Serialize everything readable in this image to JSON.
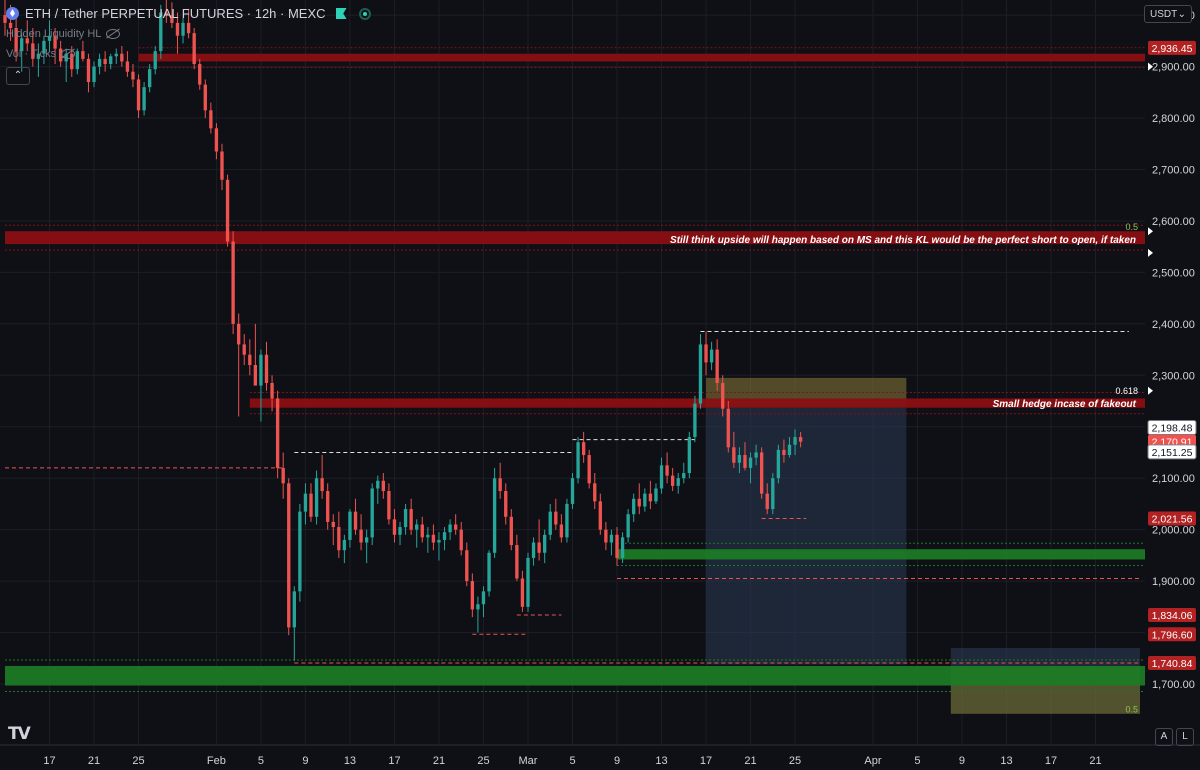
{
  "header": {
    "title": "ETH / Tether PERPETUAL FUTURES · 12h · MEXC",
    "indicator1": "Hidden Liquidity HL",
    "indicator2": "Vol · Ticks",
    "currency": "USDT"
  },
  "axis_buttons": {
    "a": "A",
    "l": "L"
  },
  "colors": {
    "up": "#26a69a",
    "down": "#ef5350",
    "red_zone": "#8b0f12",
    "green_zone": "#1b7a24",
    "background": "#0f1016",
    "grid": "#1c1e26"
  },
  "chart_data": {
    "type": "candlestick",
    "symbol": "ETH / Tether PERPETUAL FUTURES",
    "timeframe": "12h",
    "exchange": "MEXC",
    "ylim": [
      1630,
      3010
    ],
    "y_ticks": [
      "3,000.00",
      "2,900.00",
      "2,800.00",
      "2,700.00",
      "2,600.00",
      "2,500.00",
      "2,400.00",
      "2,300.00",
      "2,200.00",
      "2,100.00",
      "2,000.00",
      "1,900.00",
      "1,800.00",
      "1,700.00"
    ],
    "x_ticks": [
      "17",
      "21",
      "25",
      "Feb",
      "5",
      "9",
      "13",
      "17",
      "21",
      "25",
      "Mar",
      "5",
      "9",
      "13",
      "17",
      "21",
      "25",
      "Apr",
      "5",
      "9",
      "13",
      "17",
      "21"
    ],
    "x_tick_dates": [
      "2025-01-17",
      "2025-01-21",
      "2025-01-25",
      "2025-02-01",
      "2025-02-05",
      "2025-02-09",
      "2025-02-13",
      "2025-02-17",
      "2025-02-21",
      "2025-02-25",
      "2025-03-01",
      "2025-03-05",
      "2025-03-09",
      "2025-03-13",
      "2025-03-17",
      "2025-03-21",
      "2025-03-25",
      "2025-04-01",
      "2025-04-05",
      "2025-04-09",
      "2025-04-13",
      "2025-04-17",
      "2025-04-21"
    ],
    "x_range": [
      "2025-01-13",
      "2025-04-25"
    ],
    "price_labels": [
      {
        "text": "2,936.45",
        "value": 2936.45,
        "color": "#b22222"
      },
      {
        "text": "2,198.48",
        "value": 2198.48,
        "color": "#ffffff"
      },
      {
        "text": "2,170.91",
        "value": 2170.91,
        "color": "#ef5350"
      },
      {
        "text": "2,151.25",
        "value": 2151.25,
        "color": "#ffffff"
      },
      {
        "text": "2,021.56",
        "value": 2021.56,
        "color": "#b22222"
      },
      {
        "text": "1,834.06",
        "value": 1834.06,
        "color": "#b22222"
      },
      {
        "text": "1,796.60",
        "value": 1796.6,
        "color": "#b22222"
      },
      {
        "text": "1,740.84",
        "value": 1740.84,
        "color": "#b22222"
      }
    ],
    "zones": [
      {
        "type": "red",
        "from": 2910,
        "to": 2925,
        "start": "2025-01-25",
        "end": "2025-04-25"
      },
      {
        "type": "red",
        "from": 2555,
        "to": 2580,
        "start": "2025-01-13",
        "end": "2025-04-25"
      },
      {
        "type": "red",
        "from": 2237,
        "to": 2255,
        "start": "2025-02-04",
        "end": "2025-04-25"
      },
      {
        "type": "green",
        "from": 1942,
        "to": 1962,
        "start": "2025-03-09",
        "end": "2025-04-25"
      },
      {
        "type": "green",
        "from": 1697,
        "to": 1735,
        "start": "2025-01-13",
        "end": "2025-04-25"
      }
    ],
    "annotations": [
      {
        "text": "Still think upside will happen based on MS and this KL would be the perfect short to open, if taken",
        "price": 2563
      },
      {
        "text": "Small hedge incase of fakeout",
        "price": 2244
      },
      {
        "text": "0.5",
        "price": 2588
      },
      {
        "text": "0.618",
        "price": 2269
      },
      {
        "text": "0.5",
        "price": 1650
      }
    ],
    "position_boxes": [
      {
        "name": "hedge-short",
        "entry": 2240,
        "stop": 2295,
        "target": 1738,
        "start": "2025-03-17",
        "end": "2025-04-04"
      },
      {
        "name": "long-zone",
        "entry": 1733,
        "stop": 1770,
        "target": 1642,
        "start": "2025-04-08",
        "end": "2025-04-25"
      }
    ],
    "candles": [
      [
        "2025-01-13",
        3000,
        3035,
        2960,
        2985
      ],
      [
        "2025-01-13.5",
        2985,
        3020,
        2950,
        2975
      ],
      [
        "2025-01-14",
        2975,
        3000,
        2910,
        2930
      ],
      [
        "2025-01-14.5",
        2930,
        2965,
        2890,
        2955
      ],
      [
        "2025-01-15",
        2955,
        2990,
        2930,
        2945
      ],
      [
        "2025-01-15.5",
        2945,
        2975,
        2900,
        2915
      ],
      [
        "2025-01-16",
        2915,
        2945,
        2880,
        2925
      ],
      [
        "2025-01-16.5",
        2925,
        2960,
        2905,
        2950
      ],
      [
        "2025-01-17",
        2950,
        2990,
        2930,
        2960
      ],
      [
        "2025-01-17.5",
        2960,
        2975,
        2905,
        2935
      ],
      [
        "2025-01-18",
        2935,
        2950,
        2900,
        2910
      ],
      [
        "2025-01-18.5",
        2910,
        2935,
        2870,
        2925
      ],
      [
        "2025-01-19",
        2925,
        2940,
        2880,
        2895
      ],
      [
        "2025-01-19.5",
        2895,
        2935,
        2885,
        2930
      ],
      [
        "2025-01-20",
        2930,
        2950,
        2910,
        2915
      ],
      [
        "2025-01-20.5",
        2915,
        2925,
        2850,
        2870
      ],
      [
        "2025-01-21",
        2870,
        2910,
        2860,
        2900
      ],
      [
        "2025-01-21.5",
        2900,
        2925,
        2885,
        2915
      ],
      [
        "2025-01-22",
        2915,
        2930,
        2890,
        2905
      ],
      [
        "2025-01-22.5",
        2905,
        2925,
        2895,
        2920
      ],
      [
        "2025-01-23",
        2920,
        2935,
        2905,
        2925
      ],
      [
        "2025-01-23.5",
        2925,
        2940,
        2900,
        2910
      ],
      [
        "2025-01-24",
        2910,
        2930,
        2880,
        2890
      ],
      [
        "2025-01-24.5",
        2890,
        2905,
        2860,
        2875
      ],
      [
        "2025-01-25",
        2875,
        2885,
        2800,
        2815
      ],
      [
        "2025-01-25.5",
        2815,
        2870,
        2805,
        2860
      ],
      [
        "2025-01-26",
        2860,
        2905,
        2850,
        2895
      ],
      [
        "2025-01-26.5",
        2895,
        2940,
        2885,
        2930
      ],
      [
        "2025-01-27",
        2930,
        3020,
        2915,
        3005
      ],
      [
        "2025-01-27.5",
        3005,
        3030,
        2985,
        3000
      ],
      [
        "2025-01-28",
        3000,
        3025,
        2975,
        2985
      ],
      [
        "2025-01-28.5",
        2985,
        3005,
        2925,
        2960
      ],
      [
        "2025-01-29",
        2960,
        2995,
        2945,
        2985
      ],
      [
        "2025-01-29.5",
        2985,
        3010,
        2955,
        2965
      ],
      [
        "2025-01-30",
        2965,
        2975,
        2895,
        2905
      ],
      [
        "2025-01-30.5",
        2905,
        2915,
        2855,
        2865
      ],
      [
        "2025-01-31",
        2865,
        2875,
        2800,
        2815
      ],
      [
        "2025-01-31.5",
        2815,
        2830,
        2770,
        2780
      ],
      [
        "2025-02-01",
        2780,
        2790,
        2720,
        2735
      ],
      [
        "2025-02-01.5",
        2735,
        2750,
        2660,
        2680
      ],
      [
        "2025-02-02",
        2680,
        2690,
        2550,
        2560
      ],
      [
        "2025-02-02.5",
        2560,
        2580,
        2380,
        2400
      ],
      [
        "2025-02-03",
        2400,
        2420,
        2220,
        2360
      ],
      [
        "2025-02-03.5",
        2360,
        2380,
        2320,
        2340
      ],
      [
        "2025-02-04",
        2340,
        2370,
        2300,
        2320
      ],
      [
        "2025-02-04.5",
        2320,
        2400,
        2280,
        2280
      ],
      [
        "2025-02-05",
        2280,
        2350,
        2210,
        2340
      ],
      [
        "2025-02-05.5",
        2340,
        2365,
        2270,
        2285
      ],
      [
        "2025-02-06",
        2285,
        2300,
        2230,
        2255
      ],
      [
        "2025-02-06.5",
        2255,
        2270,
        2100,
        2120
      ],
      [
        "2025-02-07",
        2120,
        2150,
        2060,
        2090
      ],
      [
        "2025-02-07.5",
        2090,
        2100,
        1795,
        1810
      ],
      [
        "2025-02-08",
        1810,
        1890,
        1745,
        1880
      ],
      [
        "2025-02-08.5",
        1880,
        2050,
        1860,
        2035
      ],
      [
        "2025-02-09",
        2035,
        2090,
        2010,
        2070
      ],
      [
        "2025-02-09.5",
        2070,
        2090,
        2015,
        2025
      ],
      [
        "2025-02-10",
        2025,
        2115,
        2010,
        2100
      ],
      [
        "2025-02-10.5",
        2100,
        2145,
        2060,
        2075
      ],
      [
        "2025-02-11",
        2075,
        2090,
        2000,
        2015
      ],
      [
        "2025-02-11.5",
        2015,
        2030,
        1970,
        2005
      ],
      [
        "2025-02-12",
        2005,
        2035,
        1945,
        1960
      ],
      [
        "2025-02-12.5",
        1960,
        1990,
        1935,
        1980
      ],
      [
        "2025-02-13",
        1980,
        2040,
        1965,
        2035
      ],
      [
        "2025-02-13.5",
        2035,
        2060,
        1990,
        2000
      ],
      [
        "2025-02-14",
        2000,
        2030,
        1960,
        1975
      ],
      [
        "2025-02-14.5",
        1975,
        2000,
        1935,
        1985
      ],
      [
        "2025-02-15",
        1985,
        2090,
        1970,
        2080
      ],
      [
        "2025-02-15.5",
        2080,
        2105,
        2050,
        2095
      ],
      [
        "2025-02-16",
        2095,
        2110,
        2060,
        2075
      ],
      [
        "2025-02-16.5",
        2075,
        2090,
        2010,
        2020
      ],
      [
        "2025-02-17",
        2020,
        2040,
        1975,
        1990
      ],
      [
        "2025-02-17.5",
        1990,
        2015,
        1970,
        2005
      ],
      [
        "2025-02-18",
        2005,
        2050,
        1990,
        2040
      ],
      [
        "2025-02-18.5",
        2040,
        2060,
        1990,
        2000
      ],
      [
        "2025-02-19",
        2000,
        2020,
        1965,
        2010
      ],
      [
        "2025-02-19.5",
        2010,
        2025,
        1975,
        1985
      ],
      [
        "2025-02-20",
        1985,
        2005,
        1955,
        1990
      ],
      [
        "2025-02-20.5",
        1990,
        2010,
        1960,
        1975
      ],
      [
        "2025-02-21",
        1975,
        1995,
        1940,
        1980
      ],
      [
        "2025-02-21.5",
        1980,
        2005,
        1960,
        1995
      ],
      [
        "2025-02-22",
        1995,
        2020,
        1980,
        2010
      ],
      [
        "2025-02-22.5",
        2010,
        2030,
        1990,
        2000
      ],
      [
        "2025-02-23",
        2000,
        2015,
        1950,
        1960
      ],
      [
        "2025-02-23.5",
        1960,
        1975,
        1890,
        1900
      ],
      [
        "2025-02-24",
        1900,
        1915,
        1830,
        1845
      ],
      [
        "2025-02-24.5",
        1845,
        1870,
        1800,
        1855
      ],
      [
        "2025-02-25",
        1855,
        1890,
        1830,
        1880
      ],
      [
        "2025-02-25.5",
        1880,
        1960,
        1870,
        1955
      ],
      [
        "2025-02-26",
        1955,
        2120,
        1945,
        2100
      ],
      [
        "2025-02-26.5",
        2100,
        2130,
        2060,
        2075
      ],
      [
        "2025-02-27",
        2075,
        2090,
        2010,
        2025
      ],
      [
        "2025-02-27.5",
        2025,
        2040,
        1960,
        1970
      ],
      [
        "2025-02-28",
        1970,
        1990,
        1900,
        1905
      ],
      [
        "2025-02-28.5",
        1905,
        1920,
        1840,
        1850
      ],
      [
        "2025-03-01",
        1850,
        1955,
        1840,
        1945
      ],
      [
        "2025-03-01.5",
        1945,
        1985,
        1930,
        1975
      ],
      [
        "2025-03-02",
        1975,
        2020,
        1940,
        1955
      ],
      [
        "2025-03-02.5",
        1955,
        2000,
        1935,
        1990
      ],
      [
        "2025-03-03",
        1990,
        2050,
        1980,
        2035
      ],
      [
        "2025-03-03.5",
        2035,
        2060,
        2000,
        2010
      ],
      [
        "2025-03-04",
        2010,
        2030,
        1975,
        1985
      ],
      [
        "2025-03-04.5",
        1985,
        2060,
        1975,
        2050
      ],
      [
        "2025-03-05",
        2050,
        2110,
        2040,
        2100
      ],
      [
        "2025-03-05.5",
        2100,
        2180,
        2090,
        2170
      ],
      [
        "2025-03-06",
        2170,
        2190,
        2130,
        2145
      ],
      [
        "2025-03-06.5",
        2145,
        2155,
        2080,
        2090
      ],
      [
        "2025-03-07",
        2090,
        2110,
        2040,
        2055
      ],
      [
        "2025-03-07.5",
        2055,
        2070,
        1990,
        2000
      ],
      [
        "2025-03-08",
        2000,
        2015,
        1960,
        1975
      ],
      [
        "2025-03-08.5",
        1975,
        2000,
        1950,
        1990
      ],
      [
        "2025-03-09",
        1990,
        2005,
        1930,
        1945
      ],
      [
        "2025-03-09.5",
        1945,
        1995,
        1935,
        1985
      ],
      [
        "2025-03-10",
        1985,
        2040,
        1975,
        2030
      ],
      [
        "2025-03-10.5",
        2030,
        2070,
        2015,
        2060
      ],
      [
        "2025-03-11",
        2060,
        2090,
        2030,
        2045
      ],
      [
        "2025-03-11.5",
        2045,
        2080,
        2035,
        2070
      ],
      [
        "2025-03-12",
        2070,
        2095,
        2040,
        2055
      ],
      [
        "2025-03-12.5",
        2055,
        2090,
        2050,
        2080
      ],
      [
        "2025-03-13",
        2080,
        2140,
        2070,
        2125
      ],
      [
        "2025-03-13.5",
        2125,
        2150,
        2090,
        2105
      ],
      [
        "2025-03-14",
        2105,
        2120,
        2075,
        2085
      ],
      [
        "2025-03-14.5",
        2085,
        2110,
        2070,
        2100
      ],
      [
        "2025-03-15",
        2100,
        2130,
        2090,
        2110
      ],
      [
        "2025-03-15.5",
        2110,
        2190,
        2100,
        2180
      ],
      [
        "2025-03-16",
        2180,
        2260,
        2170,
        2245
      ],
      [
        "2025-03-16.5",
        2245,
        2380,
        2235,
        2360
      ],
      [
        "2025-03-17",
        2360,
        2385,
        2300,
        2325
      ],
      [
        "2025-03-17.5",
        2325,
        2365,
        2310,
        2350
      ],
      [
        "2025-03-18",
        2350,
        2370,
        2270,
        2285
      ],
      [
        "2025-03-18.5",
        2285,
        2300,
        2220,
        2235
      ],
      [
        "2025-03-19",
        2235,
        2250,
        2150,
        2160
      ],
      [
        "2025-03-19.5",
        2160,
        2190,
        2120,
        2130
      ],
      [
        "2025-03-20",
        2130,
        2160,
        2110,
        2145
      ],
      [
        "2025-03-20.5",
        2145,
        2170,
        2115,
        2120
      ],
      [
        "2025-03-21",
        2120,
        2150,
        2090,
        2140
      ],
      [
        "2025-03-21.5",
        2140,
        2165,
        2125,
        2150
      ],
      [
        "2025-03-22",
        2150,
        2160,
        2060,
        2070
      ],
      [
        "2025-03-22.5",
        2070,
        2090,
        2030,
        2040
      ],
      [
        "2025-03-23",
        2040,
        2110,
        2030,
        2100
      ],
      [
        "2025-03-23.5",
        2100,
        2165,
        2090,
        2155
      ],
      [
        "2025-03-24",
        2155,
        2175,
        2130,
        2145
      ],
      [
        "2025-03-24.5",
        2145,
        2180,
        2140,
        2165
      ],
      [
        "2025-03-25",
        2165,
        2195,
        2145,
        2180
      ],
      [
        "2025-03-25.5",
        2180,
        2190,
        2160,
        2171
      ]
    ]
  }
}
